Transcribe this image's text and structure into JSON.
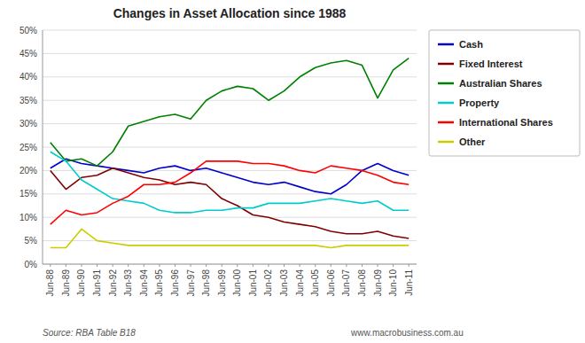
{
  "chart_data": {
    "type": "line",
    "title": "Changes in Asset Allocation since 1988",
    "annotations": [
      "Source: RBA Table B18",
      "www.macrobusiness.com.au"
    ],
    "categories": [
      "Jun-88",
      "Jun-89",
      "Jun-90",
      "Jun-91",
      "Jun-92",
      "Jun-93",
      "Jun-94",
      "Jun-95",
      "Jun-96",
      "Jun-97",
      "Jun-98",
      "Jun-99",
      "Jun-00",
      "Jun-01",
      "Jun-02",
      "Jun-03",
      "Jun-04",
      "Jun-05",
      "Jun-06",
      "Jun-07",
      "Jun-08",
      "Jun-09",
      "Jun-10",
      "Jun-11"
    ],
    "series": [
      {
        "name": "Cash",
        "color": "#0000CC",
        "values": [
          20.5,
          22.5,
          21.5,
          21.0,
          20.5,
          20.0,
          19.5,
          20.5,
          21.0,
          20.0,
          20.5,
          19.5,
          18.5,
          17.5,
          17.0,
          17.5,
          16.5,
          15.5,
          15.0,
          17.0,
          20.0,
          21.5,
          20.0,
          19.0
        ]
      },
      {
        "name": "Fixed Interest",
        "color": "#800000",
        "values": [
          20.0,
          16.0,
          18.5,
          19.0,
          20.5,
          19.5,
          18.5,
          18.0,
          17.0,
          17.5,
          17.0,
          14.0,
          12.5,
          10.5,
          10.0,
          9.0,
          8.5,
          8.0,
          7.0,
          6.5,
          6.5,
          7.0,
          6.0,
          5.5
        ]
      },
      {
        "name": "Australian Shares",
        "color": "#008000",
        "values": [
          26.0,
          22.0,
          22.5,
          21.0,
          24.0,
          29.5,
          30.5,
          31.5,
          32.0,
          31.0,
          35.0,
          37.0,
          38.0,
          37.5,
          35.0,
          37.0,
          40.0,
          42.0,
          43.0,
          43.5,
          42.5,
          35.5,
          41.5,
          44.0
        ]
      },
      {
        "name": "Property",
        "color": "#00CCCC",
        "values": [
          24.0,
          22.0,
          18.0,
          16.0,
          14.0,
          13.5,
          13.0,
          11.5,
          11.0,
          11.0,
          11.5,
          11.5,
          12.0,
          12.0,
          13.0,
          13.0,
          13.0,
          13.5,
          14.0,
          13.5,
          13.0,
          13.5,
          11.5,
          11.5
        ]
      },
      {
        "name": "International Shares",
        "color": "#FF0000",
        "values": [
          8.5,
          11.5,
          10.5,
          11.0,
          13.0,
          14.5,
          17.0,
          17.0,
          17.5,
          19.5,
          22.0,
          22.0,
          22.0,
          21.5,
          21.5,
          21.0,
          20.0,
          19.5,
          21.0,
          20.5,
          20.0,
          19.0,
          17.5,
          17.0
        ]
      },
      {
        "name": "Other",
        "color": "#CCCC00",
        "values": [
          3.5,
          3.5,
          7.5,
          5.0,
          4.5,
          4.0,
          4.0,
          4.0,
          4.0,
          4.0,
          4.0,
          4.0,
          4.0,
          4.0,
          4.0,
          4.0,
          4.0,
          4.0,
          3.5,
          4.0,
          4.0,
          4.0,
          4.0,
          4.0
        ]
      }
    ],
    "ylim": [
      0,
      50
    ],
    "yticks": [
      {
        "value": 0,
        "label": "0%"
      },
      {
        "value": 5,
        "label": "5%"
      },
      {
        "value": 10,
        "label": "10%"
      },
      {
        "value": 15,
        "label": "15%"
      },
      {
        "value": 20,
        "label": "20%"
      },
      {
        "value": 25,
        "label": "25%"
      },
      {
        "value": 30,
        "label": "30%"
      },
      {
        "value": 35,
        "label": "35%"
      },
      {
        "value": 40,
        "label": "40%"
      },
      {
        "value": 45,
        "label": "45%"
      },
      {
        "value": 50,
        "label": "50%"
      }
    ],
    "grid": true,
    "legend": "right"
  }
}
